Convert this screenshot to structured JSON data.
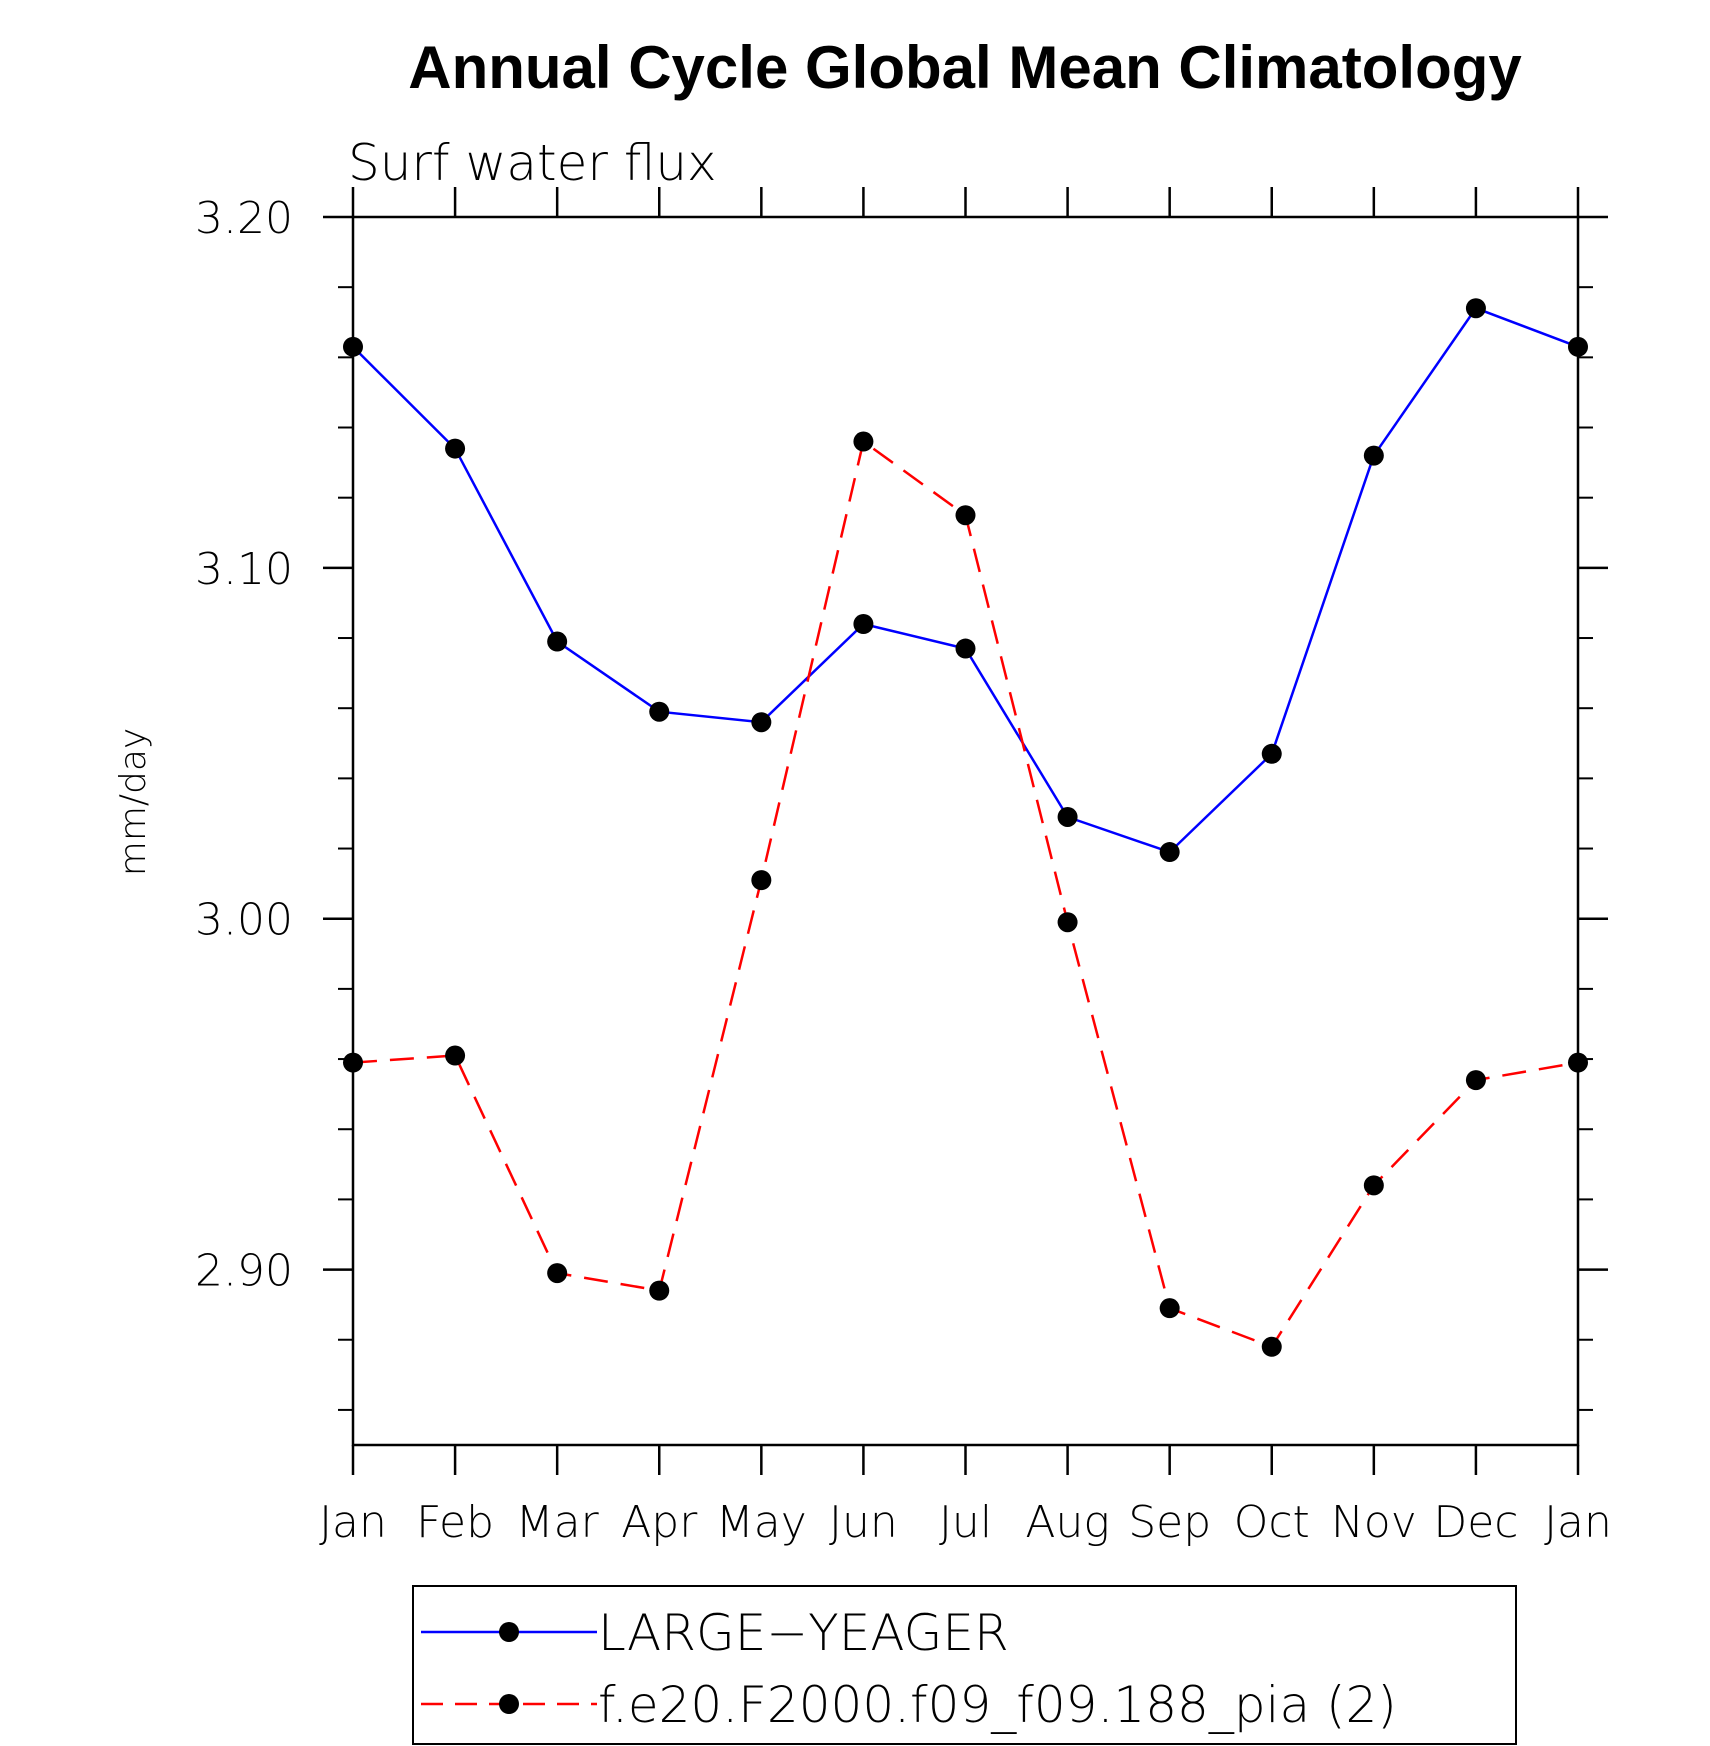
{
  "chart_data": {
    "type": "line",
    "title": "Annual Cycle Global Mean Climatology",
    "subtitle": "Surf water flux",
    "xlabel": "",
    "ylabel": "mm/day",
    "categories": [
      "Jan",
      "Feb",
      "Mar",
      "Apr",
      "May",
      "Jun",
      "Jul",
      "Aug",
      "Sep",
      "Oct",
      "Nov",
      "Dec",
      "Jan"
    ],
    "ylim": [
      2.85,
      3.2
    ],
    "yticks": [
      "3.20",
      "3.10",
      "3.00",
      "2.90"
    ],
    "ytick_values": [
      3.2,
      3.1,
      3.0,
      2.9
    ],
    "grid": false,
    "legend_position": "bottom",
    "series": [
      {
        "name": "LARGE−YEAGER",
        "color": "#0000ff",
        "linestyle": "solid",
        "marker": "circle",
        "values": [
          3.163,
          3.134,
          3.079,
          3.059,
          3.056,
          3.084,
          3.077,
          3.029,
          3.019,
          3.047,
          3.132,
          3.174,
          3.163
        ]
      },
      {
        "name": "f.e20.F2000.f09_f09.188_pia (2)",
        "color": "#ff0000",
        "linestyle": "dashed",
        "marker": "circle",
        "values": [
          2.959,
          2.961,
          2.899,
          2.894,
          3.011,
          3.136,
          3.115,
          2.999,
          2.889,
          2.878,
          2.924,
          2.954,
          2.959
        ]
      }
    ]
  }
}
